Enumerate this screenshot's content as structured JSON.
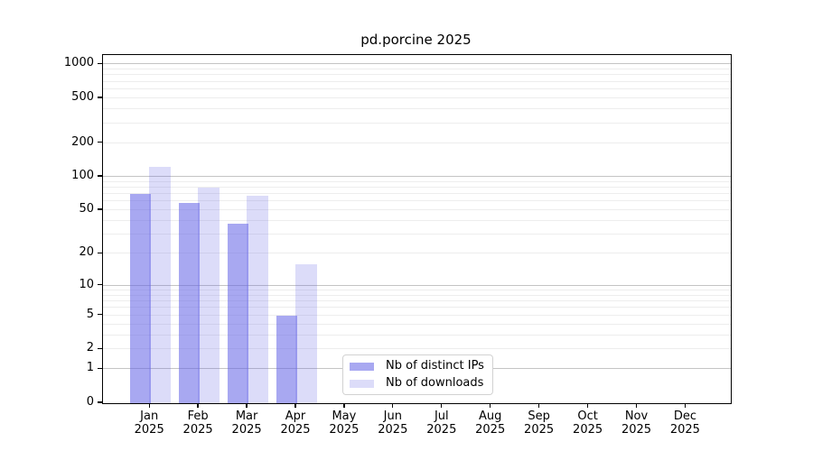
{
  "chart_data": {
    "type": "bar",
    "title": "pd.porcine 2025",
    "categories": [
      "Jan",
      "Feb",
      "Mar",
      "Apr",
      "May",
      "Jun",
      "Jul",
      "Aug",
      "Sep",
      "Oct",
      "Nov",
      "Dec"
    ],
    "year_label": "2025",
    "series": [
      {
        "name": "Nb of distinct IPs",
        "color": "rgba(102,102,230,0.57)",
        "values": [
          70,
          58,
          38,
          5,
          null,
          null,
          null,
          null,
          null,
          null,
          null,
          null
        ]
      },
      {
        "name": "Nb of downloads",
        "color": "rgba(102,102,230,0.23)",
        "values": [
          122,
          80,
          68,
          16,
          null,
          null,
          null,
          null,
          null,
          null,
          null,
          null
        ]
      }
    ],
    "y_ticks": [
      1000,
      500,
      200,
      100,
      50,
      20,
      10,
      5,
      2,
      1,
      0
    ],
    "y_scale": "log10(value+1)",
    "ylim": [
      0,
      1207
    ],
    "grid": {
      "major_values": [
        1,
        10,
        100,
        1000
      ],
      "minor_rule": "2-9 per decade"
    },
    "legend_position": "inside-bottom-center",
    "colors": {
      "major_grid": "#c4c4c4",
      "minor_grid": "#ededed",
      "spine": "#000000",
      "text": "#000000"
    }
  }
}
